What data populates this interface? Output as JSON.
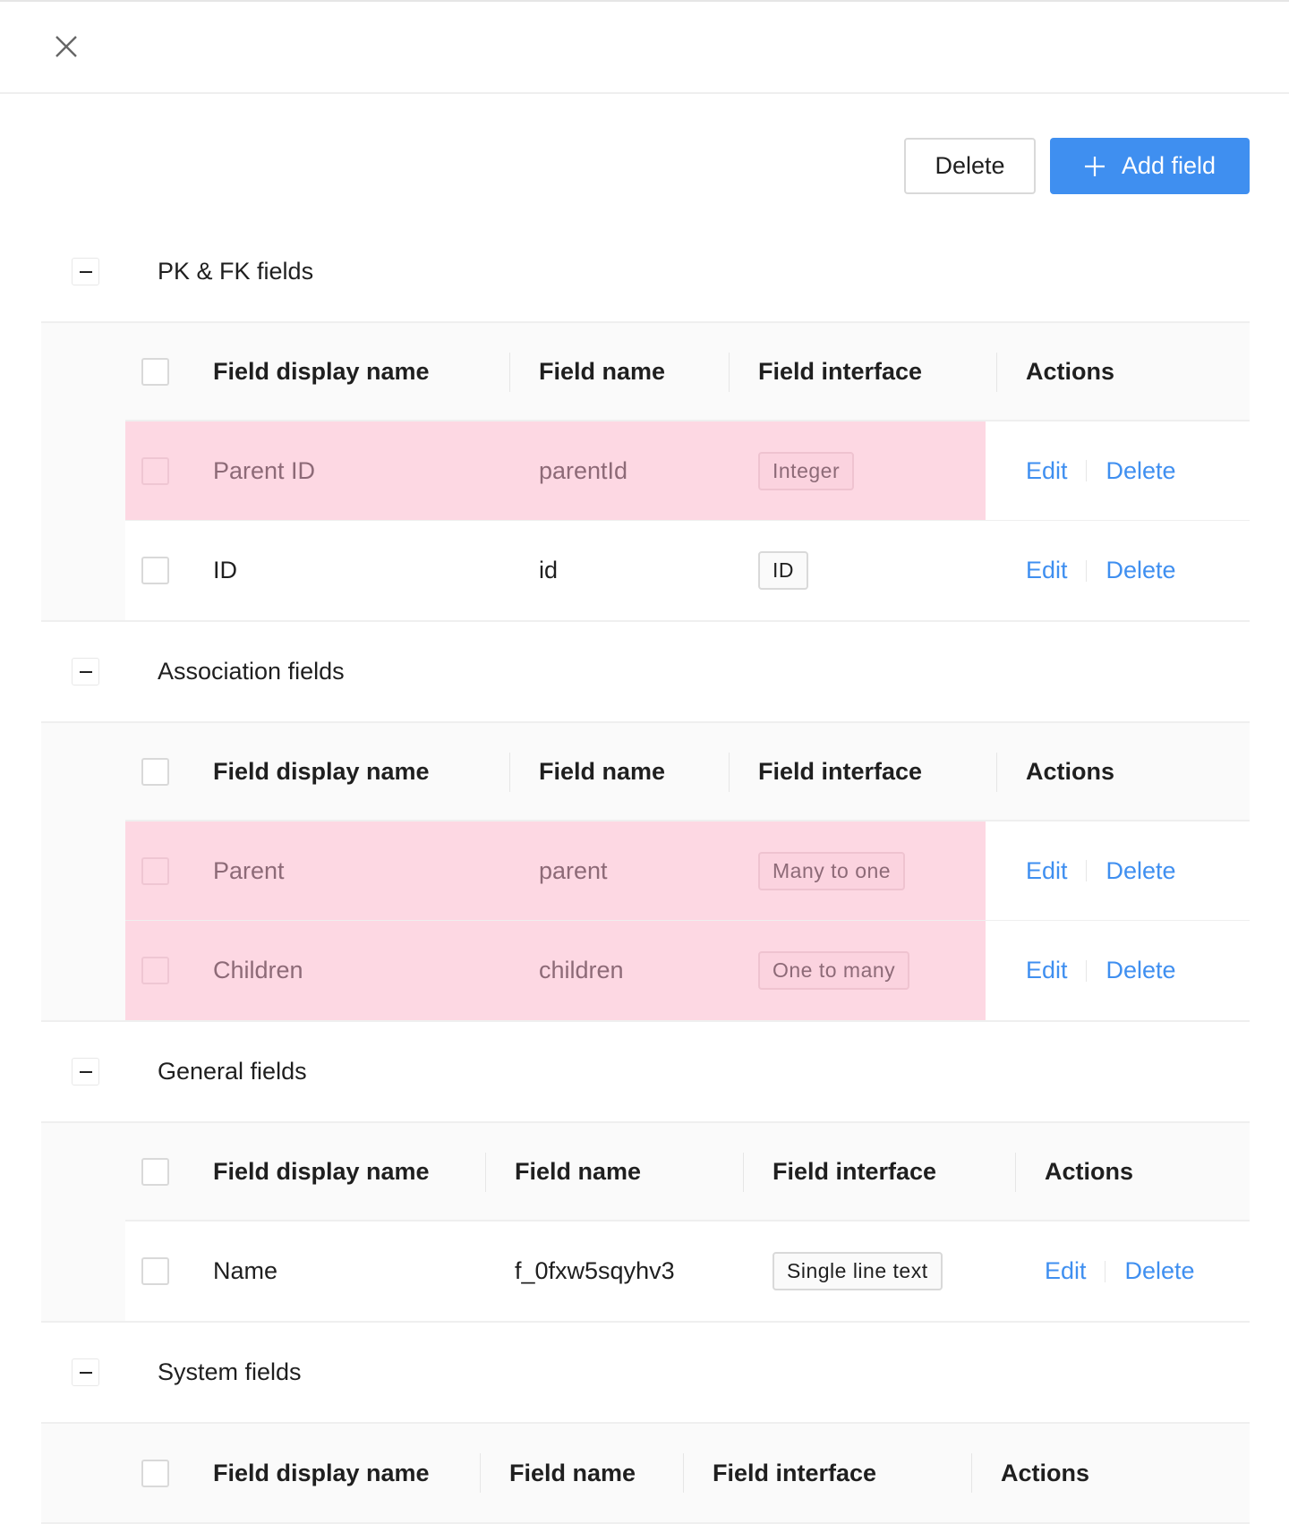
{
  "toolbar": {
    "delete_label": "Delete",
    "add_label": "Add field",
    "close_icon": "close-icon",
    "add_icon": "plus-icon"
  },
  "colors": {
    "accent": "#3f8ff0",
    "highlight": "#fdd8e3"
  },
  "columns": [
    "Field display name",
    "Field name",
    "Field interface",
    "Actions"
  ],
  "actions": {
    "edit": "Edit",
    "delete": "Delete"
  },
  "sections": [
    {
      "title": "PK & FK fields",
      "rows": [
        {
          "display": "Parent ID",
          "name": "parentId",
          "interface": "Integer",
          "highlighted": true
        },
        {
          "display": "ID",
          "name": "id",
          "interface": "ID",
          "highlighted": false
        }
      ]
    },
    {
      "title": "Association fields",
      "rows": [
        {
          "display": "Parent",
          "name": "parent",
          "interface": "Many to one",
          "highlighted": true
        },
        {
          "display": "Children",
          "name": "children",
          "interface": "One to many",
          "highlighted": true
        }
      ]
    },
    {
      "title": "General fields",
      "rows": [
        {
          "display": "Name",
          "name": "f_0fxw5sqyhv3",
          "interface": "Single line text",
          "highlighted": false
        }
      ]
    },
    {
      "title": "System fields",
      "rows": []
    }
  ]
}
